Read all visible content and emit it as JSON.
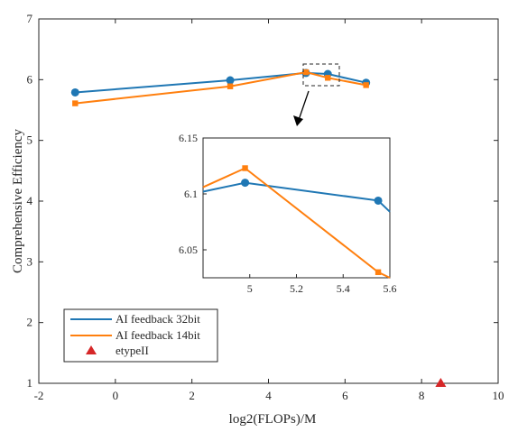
{
  "chart_data": [
    {
      "type": "line",
      "title": "",
      "xlabel": "log2(FLOPs)/M",
      "ylabel": "Comprehensive Efficiency",
      "xlim": [
        -2,
        10
      ],
      "ylim": [
        1,
        7
      ],
      "xticks": [
        -2,
        0,
        2,
        4,
        6,
        8,
        10
      ],
      "yticks": [
        1,
        2,
        3,
        4,
        5,
        6,
        7
      ],
      "grid": false,
      "legend_position": "bottom-left",
      "series": [
        {
          "name": "AI feedback 32bit",
          "color": "#1f77b4",
          "marker": "circle",
          "x": [
            -1.05,
            3.0,
            4.98,
            5.55,
            6.55
          ],
          "y": [
            5.79,
            5.99,
            6.11,
            6.094,
            5.95
          ]
        },
        {
          "name": "AI feedback 14bit",
          "color": "#ff7f0e",
          "marker": "square",
          "x": [
            -1.05,
            3.0,
            4.98,
            5.55,
            6.55
          ],
          "y": [
            5.61,
            5.89,
            6.123,
            6.03,
            5.91
          ]
        },
        {
          "name": "etypeII",
          "color": "#d62728",
          "marker": "triangle",
          "x": [
            8.5
          ],
          "y": [
            1.0
          ]
        }
      ]
    },
    {
      "type": "line",
      "title": "",
      "xlim": [
        4.8,
        5.6
      ],
      "ylim": [
        6.025,
        6.15
      ],
      "xticks": [
        5,
        5.2,
        5.4,
        5.6
      ],
      "yticks": [
        6.05,
        6.1,
        6.15
      ],
      "ytick_labels": [
        "6.05",
        "6.1",
        "6.15"
      ],
      "series": [
        {
          "name": "AI feedback 32bit",
          "color": "#1f77b4",
          "x": [
            4.8,
            4.98,
            5.55,
            5.6
          ],
          "y": [
            6.102,
            6.11,
            6.094,
            6.084
          ],
          "markers_at": [
            4.98,
            5.55
          ]
        },
        {
          "name": "AI feedback 14bit",
          "color": "#ff7f0e",
          "x": [
            4.8,
            4.98,
            5.55,
            5.6
          ],
          "y": [
            6.106,
            6.123,
            6.03,
            6.025
          ],
          "markers_at": [
            4.98,
            5.55
          ]
        }
      ]
    }
  ]
}
